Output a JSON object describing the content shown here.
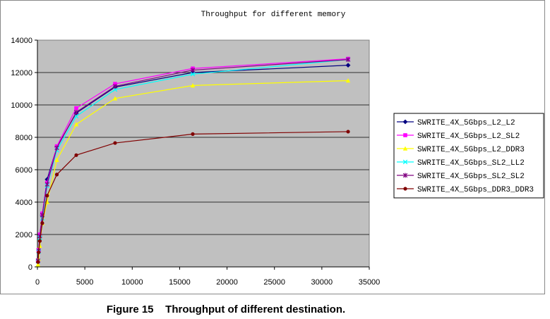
{
  "figure_caption": "Figure 15    Throughput of different destination.",
  "chart_data": {
    "type": "line",
    "title": "Throughput for different memory",
    "xlabel": "",
    "ylabel": "",
    "xlim": [
      0,
      35000
    ],
    "ylim": [
      0,
      14000
    ],
    "x_ticks": [
      0,
      5000,
      10000,
      15000,
      20000,
      25000,
      30000,
      35000
    ],
    "y_ticks": [
      0,
      2000,
      4000,
      6000,
      8000,
      10000,
      12000,
      14000
    ],
    "grid": "horizontal",
    "plot_background": "#c0c0c0",
    "legend_position": "right",
    "x": [
      64,
      128,
      256,
      512,
      1024,
      2048,
      4096,
      8192,
      16384,
      32768
    ],
    "series": [
      {
        "name": "SWRITE_4X_5Gbps_L2_L2",
        "color": "#000080",
        "marker": "diamond",
        "values": [
          380,
          1000,
          1900,
          3200,
          5400,
          7400,
          9500,
          11100,
          12000,
          12450
        ]
      },
      {
        "name": "SWRITE_4X_5Gbps_L2_SL2",
        "color": "#ff00ff",
        "marker": "square",
        "values": [
          400,
          1050,
          2000,
          3300,
          5200,
          7450,
          9800,
          11300,
          12250,
          12850
        ]
      },
      {
        "name": "SWRITE_4X_5Gbps_L2_DDR3",
        "color": "#ffff00",
        "marker": "triangle",
        "values": [
          150,
          500,
          1300,
          2700,
          4000,
          6600,
          8800,
          10400,
          11200,
          11500
        ]
      },
      {
        "name": "SWRITE_4X_5Gbps_SL2_LL2",
        "color": "#00ffff",
        "marker": "x",
        "values": [
          350,
          950,
          1800,
          3000,
          5000,
          7200,
          9300,
          10950,
          11900,
          12800
        ]
      },
      {
        "name": "SWRITE_4X_5Gbps_SL2_SL2",
        "color": "#800080",
        "marker": "star",
        "values": [
          380,
          1000,
          1900,
          3200,
          5100,
          7350,
          9550,
          11150,
          12150,
          12800
        ]
      },
      {
        "name": "SWRITE_4X_5Gbps_DDR3_DDR3",
        "color": "#800000",
        "marker": "circle",
        "values": [
          300,
          900,
          1600,
          2700,
          4400,
          5700,
          6900,
          7650,
          8200,
          8350
        ]
      }
    ]
  }
}
